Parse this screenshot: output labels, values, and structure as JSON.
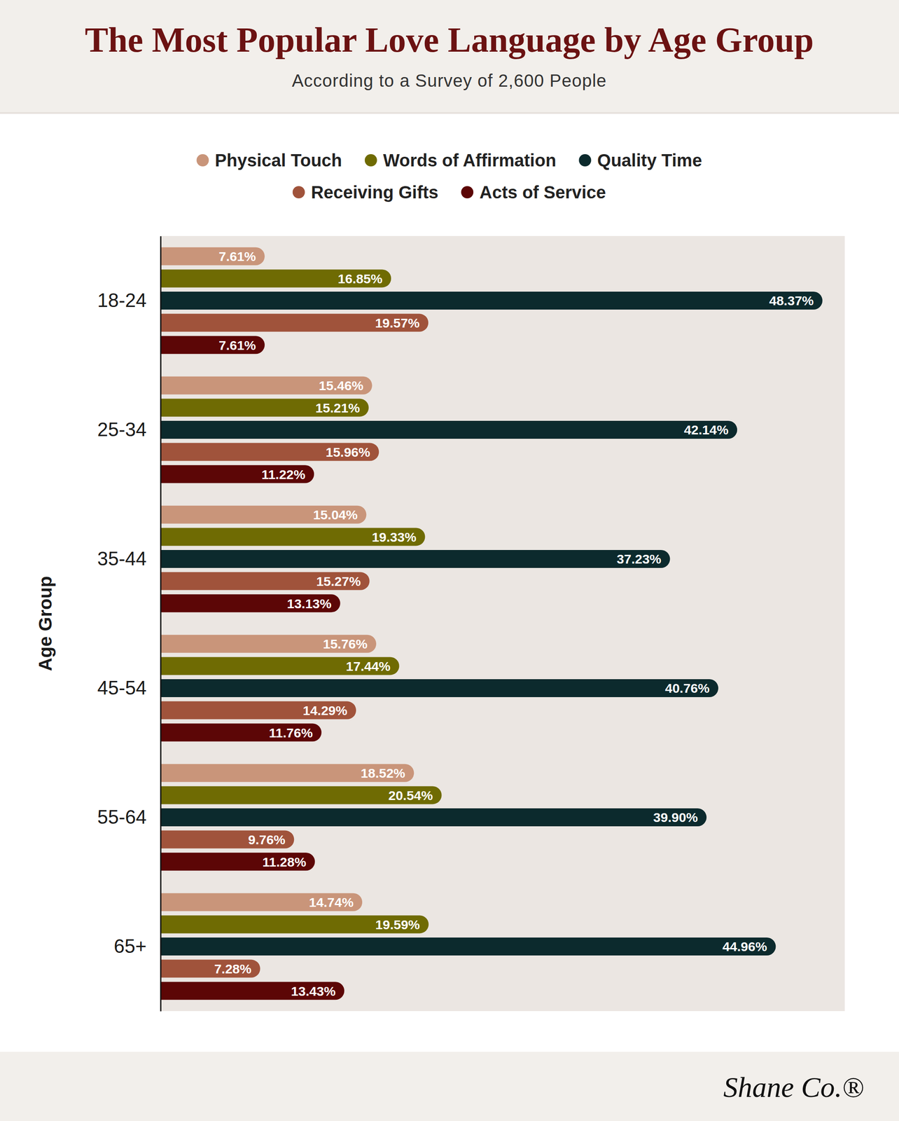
{
  "chart_data": {
    "type": "bar",
    "orientation": "horizontal",
    "title": "The Most Popular Love Language by Age Group",
    "subtitle": "According to a Survey of 2,600 People",
    "ylabel": "Age Group",
    "logo": "Shane Co.®",
    "categories": [
      "18-24",
      "25-34",
      "35-44",
      "45-54",
      "55-64",
      "65+"
    ],
    "series": [
      {
        "name": "Physical Touch",
        "color": "#c9957a",
        "values": [
          7.61,
          15.46,
          15.04,
          15.76,
          18.52,
          14.74
        ],
        "value_labels": [
          "7.61%",
          "15.46%",
          "15.04%",
          "15.76%",
          "18.52%",
          "14.74%"
        ]
      },
      {
        "name": "Words of Affirmation",
        "color": "#6f6b03",
        "values": [
          16.85,
          15.21,
          19.33,
          17.44,
          20.54,
          19.59
        ],
        "value_labels": [
          "16.85%",
          "15.21%",
          "19.33%",
          "17.44%",
          "20.54%",
          "19.59%"
        ]
      },
      {
        "name": "Quality Time",
        "color": "#0c2a2d",
        "values": [
          48.37,
          42.14,
          37.23,
          40.76,
          39.9,
          44.96
        ],
        "value_labels": [
          "48.37%",
          "42.14%",
          "37.23%",
          "40.76%",
          "39.90%",
          "44.96%"
        ]
      },
      {
        "name": "Receiving Gifts",
        "color": "#a0533b",
        "values": [
          19.57,
          15.96,
          15.27,
          14.29,
          9.76,
          7.28
        ],
        "value_labels": [
          "19.57%",
          "15.96%",
          "15.27%",
          "14.29%",
          "9.76%",
          "7.28%"
        ]
      },
      {
        "name": "Acts of Service",
        "color": "#5c0606",
        "values": [
          7.61,
          11.22,
          13.13,
          11.76,
          11.28,
          13.43
        ],
        "value_labels": [
          "7.61%",
          "11.22%",
          "13.13%",
          "11.76%",
          "11.28%",
          "13.43%"
        ]
      }
    ],
    "xlim": [
      0,
      50
    ],
    "xticks": [],
    "grid": false,
    "legend": "top",
    "data_labels": true,
    "tick_labels": "y"
  }
}
